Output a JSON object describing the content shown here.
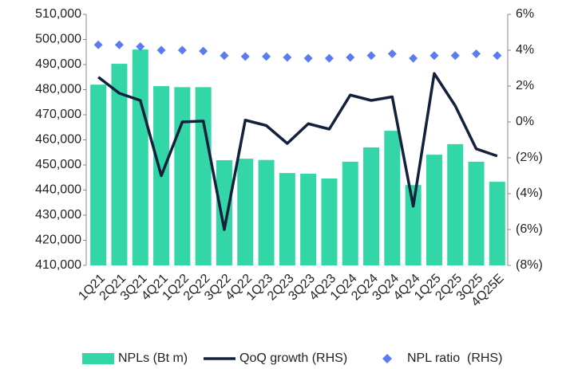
{
  "chart_data": {
    "type": "bar-line",
    "categories": [
      "1Q21",
      "2Q21",
      "3Q21",
      "4Q21",
      "1Q22",
      "2Q22",
      "3Q22",
      "4Q22",
      "1Q23",
      "2Q23",
      "3Q23",
      "4Q23",
      "1Q24",
      "2Q24",
      "3Q24",
      "4Q24",
      "1Q25",
      "2Q25",
      "3Q25",
      "4Q25E"
    ],
    "series": [
      {
        "name": "NPLs (Bt m)",
        "type": "bar",
        "color": "#33d6a6",
        "values": [
          482000,
          490300,
          496000,
          481400,
          481000,
          481000,
          451900,
          452500,
          452000,
          446800,
          446500,
          444600,
          451300,
          457000,
          463600,
          442000,
          454100,
          458300,
          451300,
          443300
        ]
      },
      {
        "name": "QoQ growth (RHS)",
        "type": "line",
        "axis": "y2",
        "color": "#14213d",
        "values": [
          2.5,
          1.6,
          1.2,
          -3.0,
          0,
          0.05,
          -6.0,
          0.1,
          -0.2,
          -1.2,
          -0.1,
          -0.4,
          1.5,
          1.2,
          1.4,
          -4.7,
          2.7,
          0.9,
          -1.5,
          -1.9
        ]
      },
      {
        "name": "NPL ratio  (RHS)",
        "type": "scatter",
        "axis": "y2",
        "color": "#5b7cf0",
        "values": [
          4.3,
          4.3,
          4.2,
          4.0,
          4.0,
          3.95,
          3.7,
          3.65,
          3.65,
          3.6,
          3.55,
          3.55,
          3.6,
          3.7,
          3.8,
          3.55,
          3.7,
          3.7,
          3.8,
          3.7
        ]
      }
    ],
    "ylim": [
      410000,
      510000
    ],
    "yticks": [
      {
        "value": 410000,
        "label": "410,000"
      },
      {
        "value": 420000,
        "label": "420,000"
      },
      {
        "value": 430000,
        "label": "430,000"
      },
      {
        "value": 440000,
        "label": "440,000"
      },
      {
        "value": 450000,
        "label": "450,000"
      },
      {
        "value": 460000,
        "label": "460,000"
      },
      {
        "value": 470000,
        "label": "470,000"
      },
      {
        "value": 480000,
        "label": "480,000"
      },
      {
        "value": 490000,
        "label": "490,000"
      },
      {
        "value": 500000,
        "label": "500,000"
      },
      {
        "value": 510000,
        "label": "510,000"
      }
    ],
    "y2lim": [
      -8,
      6
    ],
    "y2ticks": [
      {
        "value": -8,
        "label": "(8%)"
      },
      {
        "value": -6,
        "label": "(6%)"
      },
      {
        "value": -4,
        "label": "(4%)"
      },
      {
        "value": -2,
        "label": "(2%)"
      },
      {
        "value": 0,
        "label": "0%"
      },
      {
        "value": 2,
        "label": "2%"
      },
      {
        "value": 4,
        "label": "4%"
      },
      {
        "value": 6,
        "label": "6%"
      }
    ],
    "legend": "bottom"
  }
}
